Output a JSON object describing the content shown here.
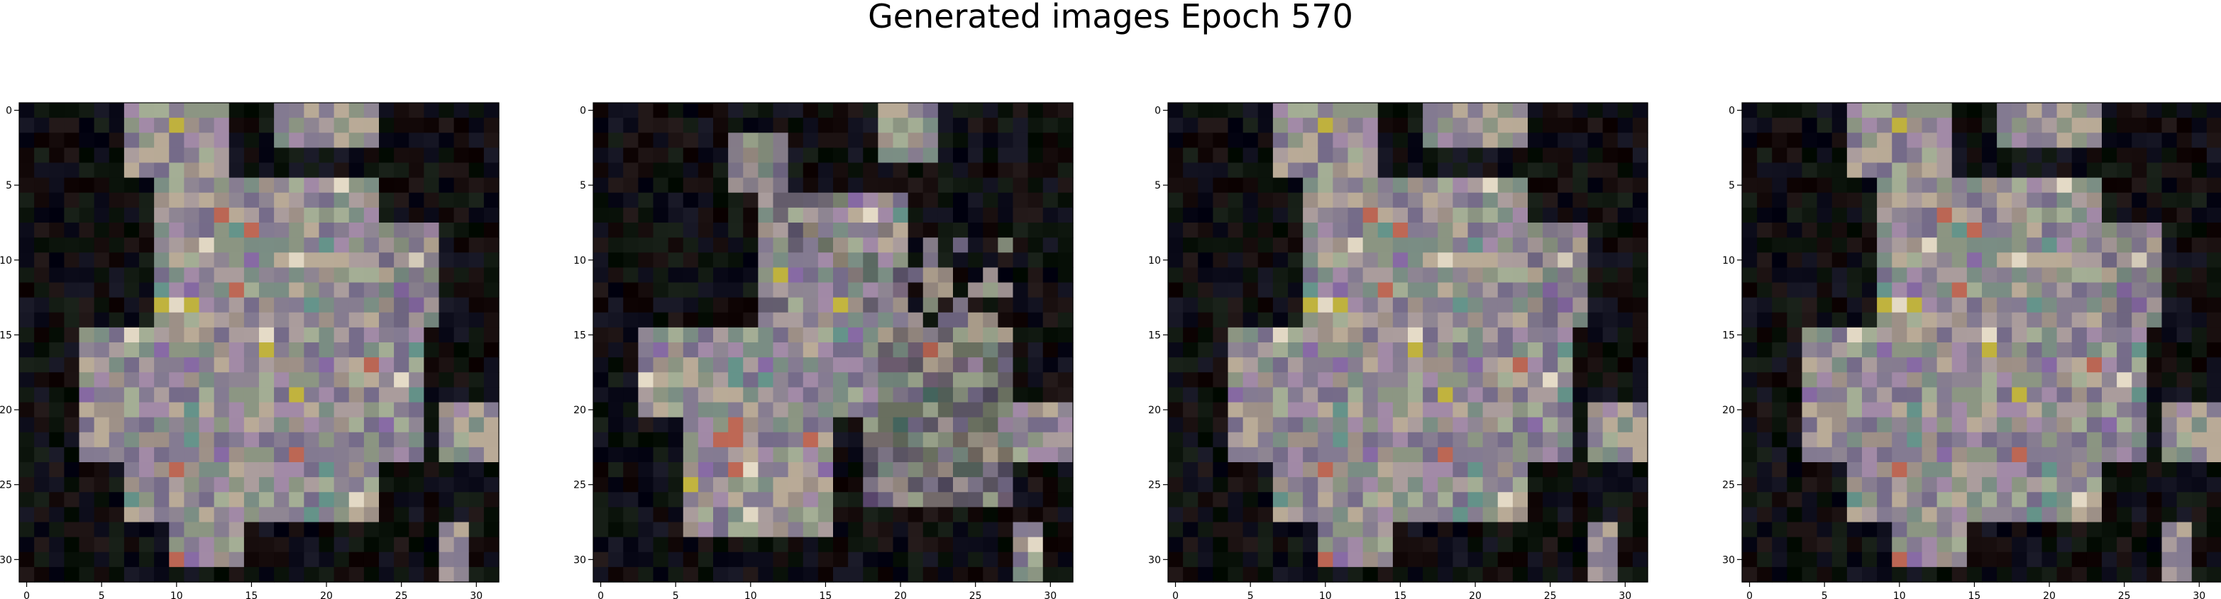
{
  "figure": {
    "title": "Generated images Epoch 570"
  },
  "panels": [
    {
      "variant": "A",
      "x_ticks": [
        "0",
        "5",
        "10",
        "15",
        "20",
        "25",
        "30"
      ],
      "y_ticks": [
        "0",
        "5",
        "10",
        "15",
        "20",
        "25",
        "30"
      ]
    },
    {
      "variant": "B",
      "x_ticks": [
        "0",
        "5",
        "10",
        "15",
        "20",
        "25",
        "30"
      ],
      "y_ticks": [
        "0",
        "5",
        "10",
        "15",
        "20",
        "25",
        "30"
      ]
    },
    {
      "variant": "A",
      "x_ticks": [
        "0",
        "5",
        "10",
        "15",
        "20",
        "25",
        "30"
      ],
      "y_ticks": [
        "0",
        "5",
        "10",
        "15",
        "20",
        "25",
        "30"
      ]
    },
    {
      "variant": "A",
      "x_ticks": [
        "0",
        "5",
        "10",
        "15",
        "20",
        "25",
        "30"
      ],
      "y_ticks": [
        "0",
        "5",
        "10",
        "15",
        "20",
        "25",
        "30"
      ]
    }
  ],
  "image_grid": {
    "rows": 32,
    "cols": 32
  },
  "colors": {
    "background": "#ffffff",
    "pixel_background": "#000000",
    "axis": "#000000"
  }
}
